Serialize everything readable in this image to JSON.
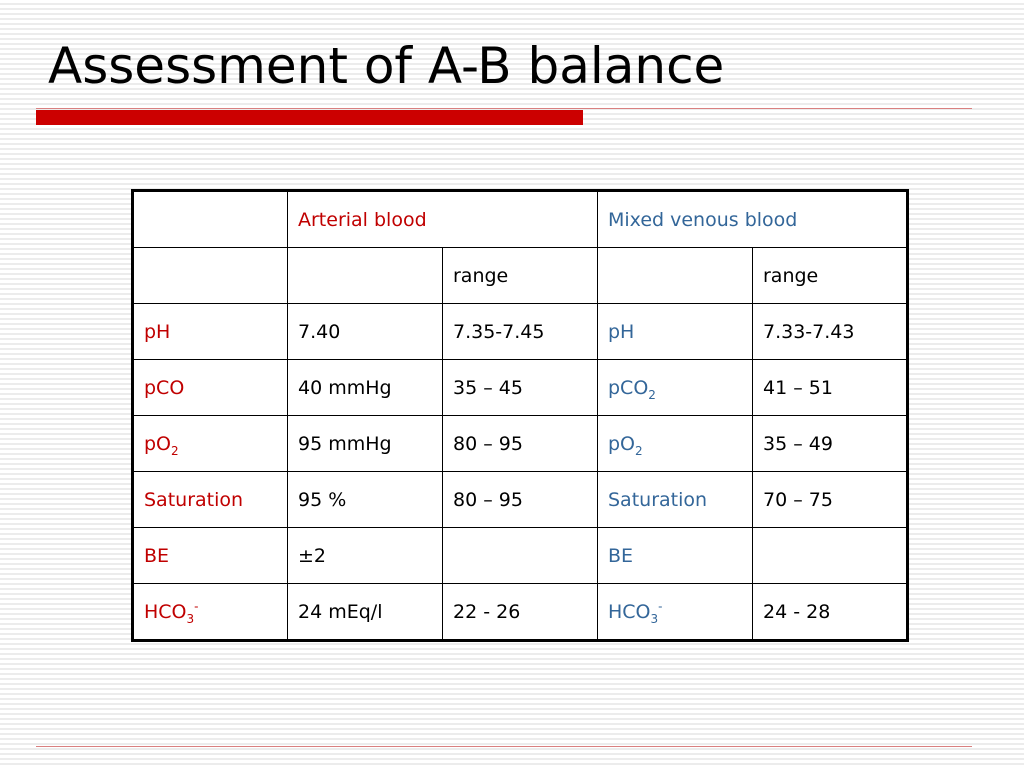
{
  "slide": {
    "title": "Assessment of A-B balance"
  },
  "colors": {
    "accent_red": "#cc0000",
    "arterial_text": "#c00000",
    "venous_text": "#336699",
    "rule_red": "#d98080"
  },
  "table": {
    "header": {
      "arterial": "Arterial blood",
      "venous": "Mixed venous blood",
      "range_label": "range"
    },
    "rows": [
      {
        "art_param": "pH",
        "art_param_sub": "",
        "art_param_sup": "",
        "art_value": "7.40",
        "art_range": "7.35-7.45",
        "ven_param": "pH",
        "ven_param_sub": "",
        "ven_param_sup": "",
        "ven_range": "7.33-7.43"
      },
      {
        "art_param": "pCO",
        "art_param_sub": "",
        "art_param_sup": "",
        "art_value": "40 mmHg",
        "art_range": "35 – 45",
        "ven_param": "pCO",
        "ven_param_sub": "2",
        "ven_param_sup": "",
        "ven_range": "41 – 51"
      },
      {
        "art_param": "pO",
        "art_param_sub": "2",
        "art_param_sup": "",
        "art_value": "95 mmHg",
        "art_range": "80 – 95",
        "ven_param": "pO",
        "ven_param_sub": "2",
        "ven_param_sup": "",
        "ven_range": "35 – 49"
      },
      {
        "art_param": "Saturation",
        "art_param_sub": "",
        "art_param_sup": "",
        "art_value": "95 %",
        "art_range": "80 – 95",
        "ven_param": "Saturation",
        "ven_param_sub": "",
        "ven_param_sup": "",
        "ven_range": "70 – 75"
      },
      {
        "art_param": "BE",
        "art_param_sub": "",
        "art_param_sup": "",
        "art_value": "±2",
        "art_range": "",
        "ven_param": "BE",
        "ven_param_sub": "",
        "ven_param_sup": "",
        "ven_range": ""
      },
      {
        "art_param": "HCO",
        "art_param_sub": "3",
        "art_param_sup": "-",
        "art_value": "24 mEq/l",
        "art_range": "22 - 26",
        "ven_param": "HCO",
        "ven_param_sub": "3",
        "ven_param_sup": "-",
        "ven_range": "24 - 28"
      }
    ]
  }
}
